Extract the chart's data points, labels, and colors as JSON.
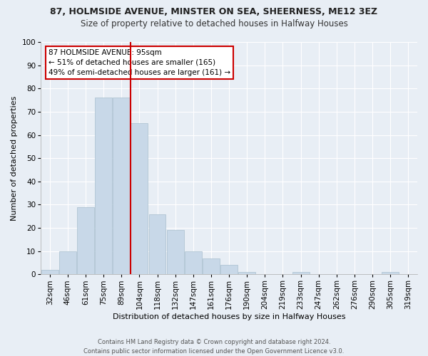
{
  "title1": "87, HOLMSIDE AVENUE, MINSTER ON SEA, SHEERNESS, ME12 3EZ",
  "title2": "Size of property relative to detached houses in Halfway Houses",
  "xlabel": "Distribution of detached houses by size in Halfway Houses",
  "ylabel": "Number of detached properties",
  "footer1": "Contains HM Land Registry data © Crown copyright and database right 2024.",
  "footer2": "Contains public sector information licensed under the Open Government Licence v3.0.",
  "bar_labels": [
    "32sqm",
    "46sqm",
    "61sqm",
    "75sqm",
    "89sqm",
    "104sqm",
    "118sqm",
    "132sqm",
    "147sqm",
    "161sqm",
    "176sqm",
    "190sqm",
    "204sqm",
    "219sqm",
    "233sqm",
    "247sqm",
    "262sqm",
    "276sqm",
    "290sqm",
    "305sqm",
    "319sqm"
  ],
  "bar_values": [
    2,
    10,
    29,
    76,
    76,
    65,
    26,
    19,
    10,
    7,
    4,
    1,
    0,
    0,
    1,
    0,
    0,
    0,
    0,
    1,
    0
  ],
  "bar_color": "#c8d8e8",
  "bar_edge_color": "#a8bfce",
  "annotation_text": "87 HOLMSIDE AVENUE: 95sqm\n← 51% of detached houses are smaller (165)\n49% of semi-detached houses are larger (161) →",
  "annotation_box_color": "#ffffff",
  "annotation_box_edge": "#cc0000",
  "vline_x": 4.5,
  "vline_color": "#cc0000",
  "ylim": [
    0,
    100
  ],
  "yticks": [
    0,
    10,
    20,
    30,
    40,
    50,
    60,
    70,
    80,
    90,
    100
  ],
  "background_color": "#e8eef5",
  "plot_background": "#e8eef5",
  "grid_color": "#ffffff",
  "title1_fontsize": 9,
  "title2_fontsize": 8.5,
  "xlabel_fontsize": 8,
  "ylabel_fontsize": 8,
  "tick_fontsize": 7.5,
  "annotation_fontsize": 7.5,
  "footer_fontsize": 6
}
